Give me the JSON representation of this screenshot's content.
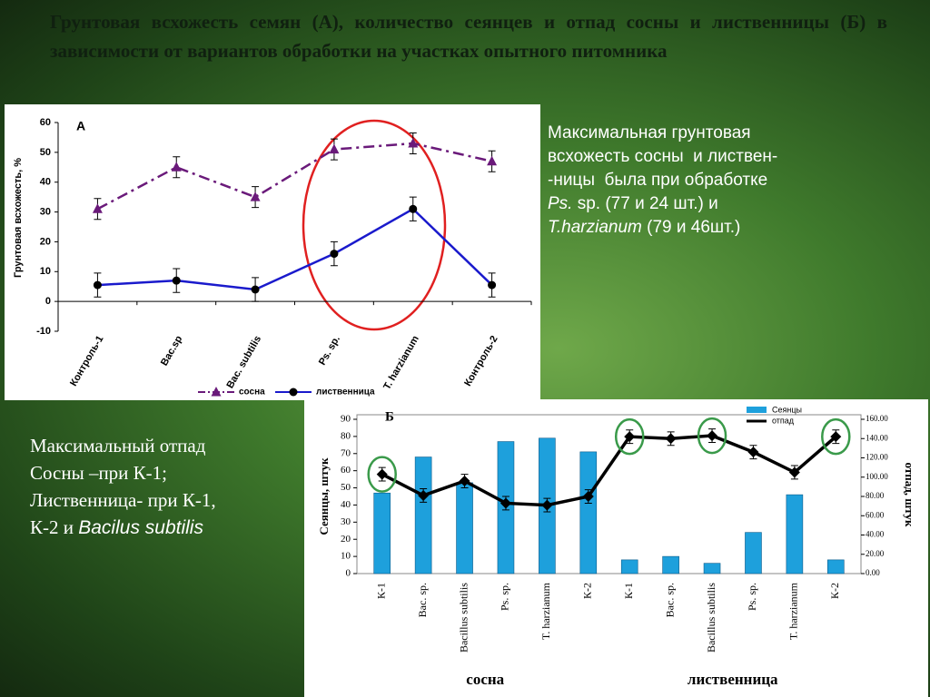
{
  "title": "Грунтовая всхожесть семян (А), количество сеянцев и отпад сосны и лиственницы (Б) в зависимости от вариантов обработки на участках опытного питомника",
  "right_text": [
    [
      {
        "text": "Максимальная грунтовая"
      }
    ],
    [
      {
        "text": "всхожесть сосны  и листвен-"
      }
    ],
    [
      {
        "text": "-ницы  была при обработке"
      }
    ],
    [
      {
        "text": "Ps.",
        "italic": true
      },
      {
        "text": " sp. (77 и 24 шт.) и"
      }
    ],
    [
      {
        "text": "T.harzianum",
        "italic": true
      },
      {
        "text": " (79 и 46шт.)"
      }
    ]
  ],
  "left_text": [
    [
      {
        "text": "Максимальный отпад"
      }
    ],
    [
      {
        "text": "Сосны –при К-1;"
      }
    ],
    [
      {
        "text": "Лиственница- при К-1,"
      }
    ],
    [
      {
        "text": "К-2 и "
      },
      {
        "text": "Bacilus subtilis",
        "italic": true
      }
    ]
  ],
  "chart_data": [
    {
      "type": "line",
      "panel_label": "А",
      "y_label": "Грунтовая всхожесть, %",
      "categories": [
        "Контроль-1",
        "Bac.sp",
        "Bac. subtilis",
        "Ps. sp.",
        "T. harzianum",
        "Контроль-2"
      ],
      "series": [
        {
          "name": "сосна",
          "color": "#6a1a7a",
          "line_style": "dashdot",
          "marker": "triangle",
          "values": [
            31,
            45,
            35,
            51,
            53,
            47
          ],
          "errors": [
            3.5,
            3.5,
            3.5,
            3.5,
            3.5,
            3.5
          ]
        },
        {
          "name": "лиственница",
          "color": "#1a1acc",
          "line_style": "solid",
          "marker": "circle",
          "values": [
            5.5,
            7,
            4,
            16,
            31,
            5.5
          ],
          "errors": [
            4,
            4,
            4,
            4,
            4,
            4
          ]
        }
      ],
      "ylim": [
        -10,
        60
      ],
      "yticks": [
        -10,
        0,
        10,
        20,
        30,
        40,
        50,
        60
      ],
      "grid": false,
      "legend": "bottom"
    },
    {
      "type": "bar_line",
      "panel_label": "Б",
      "y_label": "Сеянцы, штук",
      "y2_label": "отпад, штук",
      "categories": [
        "К-1",
        "Bac. sp.",
        "Bacillus subtilis",
        "Ps. sp.",
        "T. harzianum",
        "К-2",
        "К-1",
        "Bac. sp.",
        "Bacillus subtilis",
        "Ps. sp.",
        "T. harzianum",
        "К-2"
      ],
      "groups": [
        {
          "name": "сосна",
          "size": 6
        },
        {
          "name": "лиственница",
          "size": 6
        }
      ],
      "series": [
        {
          "name": "Сеянцы",
          "type": "bar",
          "color": "#1ea0dc",
          "values": [
            47,
            68,
            53,
            77,
            79,
            71,
            8,
            10,
            6,
            24,
            46,
            8
          ]
        },
        {
          "name": "отпад",
          "type": "line",
          "axis": "y2",
          "color": "#000000",
          "values": [
            103,
            81,
            96,
            73,
            71,
            80,
            142,
            140,
            143,
            126,
            105,
            142
          ],
          "errors": [
            7,
            7,
            7,
            7,
            7,
            7,
            7,
            7,
            7,
            7,
            7,
            7
          ]
        }
      ],
      "ylim": [
        0,
        90
      ],
      "yticks": [
        0,
        10,
        20,
        30,
        40,
        50,
        60,
        70,
        80,
        90
      ],
      "y2lim": [
        0,
        160
      ],
      "y2ticks": [
        {
          "value": 0,
          "label": "0.00"
        },
        {
          "value": 20,
          "label": "20.00"
        },
        {
          "value": 40,
          "label": "40.00"
        },
        {
          "value": 60,
          "label": "60.00"
        },
        {
          "value": 80,
          "label": "80.00"
        },
        {
          "value": 100,
          "label": "100.00"
        },
        {
          "value": 120,
          "label": "120.00"
        },
        {
          "value": 140,
          "label": "140.00"
        },
        {
          "value": 160,
          "label": "160.00"
        }
      ],
      "grid": false,
      "legend": "top-right"
    }
  ]
}
